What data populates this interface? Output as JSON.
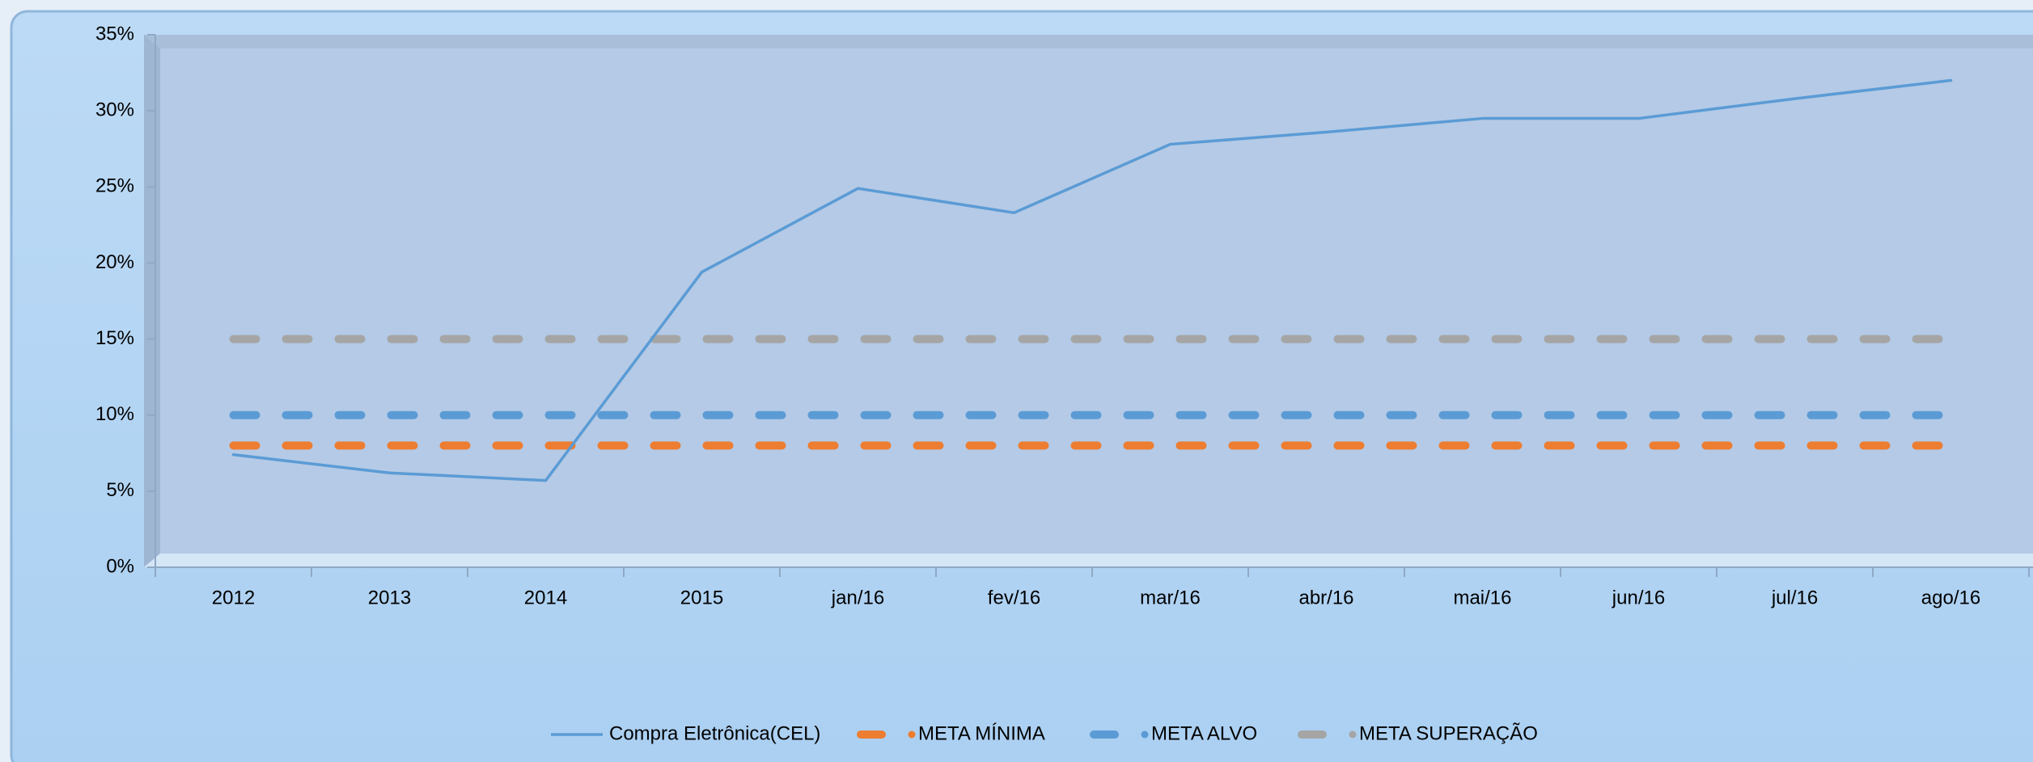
{
  "chart_data": {
    "type": "line",
    "categories": [
      "2012",
      "2013",
      "2014",
      "2015",
      "jan/16",
      "fev/16",
      "mar/16",
      "abr/16",
      "mai/16",
      "jun/16",
      "jul/16",
      "ago/16"
    ],
    "series": [
      {
        "name": "Compra Eletrônica(CEL)",
        "color": "#5b9bd5",
        "dashed": false,
        "values": [
          7.4,
          6.2,
          5.7,
          19.4,
          24.9,
          23.3,
          27.8,
          28.6,
          29.5,
          29.5,
          30.8,
          32.0
        ]
      },
      {
        "name": "META MÍNIMA",
        "color": "#ed7d31",
        "dashed": true,
        "values": [
          8,
          8,
          8,
          8,
          8,
          8,
          8,
          8,
          8,
          8,
          8,
          8
        ]
      },
      {
        "name": "META ALVO",
        "color": "#5b9bd5",
        "dashed": true,
        "values": [
          10,
          10,
          10,
          10,
          10,
          10,
          10,
          10,
          10,
          10,
          10,
          10
        ]
      },
      {
        "name": "META SUPERAÇÃO",
        "color": "#a5a5a5",
        "dashed": true,
        "values": [
          15,
          15,
          15,
          15,
          15,
          15,
          15,
          15,
          15,
          15,
          15,
          15
        ]
      }
    ],
    "ylim": [
      0,
      35
    ],
    "yticks": [
      {
        "value": 0,
        "label": "0%"
      },
      {
        "value": 5,
        "label": "5%"
      },
      {
        "value": 10,
        "label": "10%"
      },
      {
        "value": 15,
        "label": "15%"
      },
      {
        "value": 20,
        "label": "20%"
      },
      {
        "value": 25,
        "label": "25%"
      },
      {
        "value": 30,
        "label": "30%"
      },
      {
        "value": 35,
        "label": "35%"
      }
    ],
    "legend": "bottom"
  }
}
